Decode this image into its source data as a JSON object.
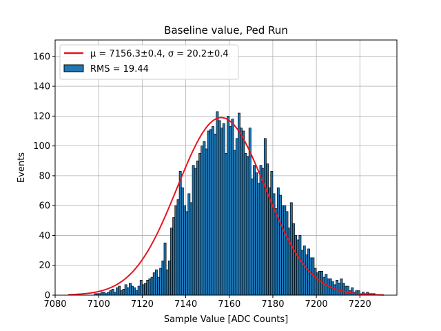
{
  "chart_data": {
    "type": "bar",
    "title": "Baseline value, Ped Run",
    "xlabel": "Sample Value [ADC Counts]",
    "ylabel": "Events",
    "xlim": [
      7080,
      7237
    ],
    "ylim": [
      0,
      171
    ],
    "xticks": [
      7080,
      7100,
      7120,
      7140,
      7160,
      7180,
      7200,
      7220
    ],
    "yticks": [
      0,
      20,
      40,
      60,
      80,
      100,
      120,
      140,
      160
    ],
    "grid": true,
    "legend_position": "top-left",
    "bin_start": 7086,
    "bin_width": 1,
    "series": [
      {
        "name": "RMS = 19.44",
        "color": "#1f77b4",
        "edgecolor": "#000000",
        "values": [
          0,
          0,
          0,
          0,
          0,
          0,
          0,
          0,
          0,
          0,
          0,
          0,
          1,
          1,
          1,
          2,
          2,
          1,
          2,
          3,
          4,
          2,
          5,
          6,
          3,
          4,
          7,
          5,
          8,
          6,
          5,
          3,
          6,
          10,
          7,
          8,
          10,
          11,
          12,
          15,
          17,
          12,
          18,
          23,
          35,
          17,
          23,
          45,
          52,
          60,
          64,
          83,
          72,
          60,
          56,
          68,
          62,
          87,
          85,
          90,
          95,
          100,
          103,
          98,
          110,
          111,
          113,
          108,
          123,
          117,
          112,
          115,
          95,
          120,
          113,
          118,
          97,
          105,
          122,
          112,
          110,
          95,
          93,
          112,
          78,
          87,
          82,
          75,
          87,
          85,
          105,
          88,
          72,
          83,
          68,
          58,
          72,
          67,
          60,
          60,
          56,
          45,
          62,
          48,
          40,
          37,
          40,
          30,
          33,
          27,
          31,
          25,
          25,
          18,
          15,
          16,
          16,
          12,
          14,
          11,
          11,
          9,
          7,
          10,
          8,
          11,
          8,
          6,
          6,
          3,
          5,
          2,
          3,
          3,
          1,
          2,
          1,
          2,
          1,
          1,
          1,
          0,
          0,
          0,
          0,
          0,
          0,
          0,
          0,
          0
        ]
      }
    ],
    "fit": {
      "label": "μ = 7156.3±0.4, σ = 20.2±0.4",
      "mu": 7156.3,
      "sigma": 20.2,
      "amplitude": 119,
      "xrange": [
        7086,
        7231
      ],
      "color": "#e8141c"
    }
  }
}
